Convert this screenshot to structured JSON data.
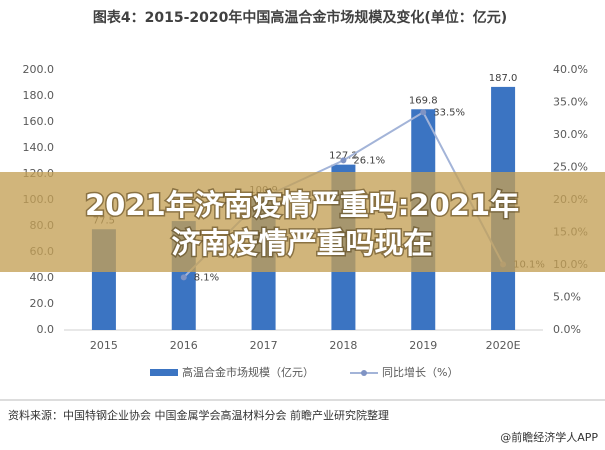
{
  "chart_data": {
    "type": "bar-line",
    "title": "图表4：2015-2020年中国高温合金市场规模及变化(单位：亿元)",
    "categories": [
      "2015",
      "2016",
      "2017",
      "2018",
      "2019",
      "2020E"
    ],
    "series": [
      {
        "name": "高温合金市场规模（亿元）",
        "type": "bar",
        "color": "#3b74c2",
        "values": [
          77.5,
          83.8,
          100.9,
          127.2,
          169.8,
          187.0
        ],
        "value_labels": [
          "77.5",
          null,
          "100.9",
          "127.2",
          "169.8",
          "187.0"
        ]
      },
      {
        "name": "同比增长（%）",
        "type": "line",
        "axis": "y2",
        "color": "#a3b4d8",
        "values": [
          null,
          8.1,
          20.4,
          26.1,
          33.5,
          10.1
        ],
        "value_labels": [
          null,
          "8.1%",
          null,
          "26.1%",
          "33.5%",
          "10.1%"
        ]
      }
    ],
    "ylim": [
      0,
      200
    ],
    "yticks": [
      {
        "value": 0,
        "label": "0.0"
      },
      {
        "value": 20,
        "label": "20.0"
      },
      {
        "value": 40,
        "label": "40.0"
      },
      {
        "value": 60,
        "label": "60.0"
      },
      {
        "value": 80,
        "label": "80.0"
      },
      {
        "value": 100,
        "label": "100.0"
      },
      {
        "value": 120,
        "label": "120.0"
      },
      {
        "value": 140,
        "label": "140.0"
      },
      {
        "value": 160,
        "label": "160.0"
      },
      {
        "value": 180,
        "label": "180.0"
      },
      {
        "value": 200,
        "label": "200.0"
      }
    ],
    "y2lim": [
      0,
      40
    ],
    "y2ticks": [
      {
        "value": 0,
        "label": "0.0%"
      },
      {
        "value": 5,
        "label": "5.0%"
      },
      {
        "value": 10,
        "label": "10.0%"
      },
      {
        "value": 15,
        "label": "15.0%"
      },
      {
        "value": 20,
        "label": "20.0%"
      },
      {
        "value": 25,
        "label": "25.0%"
      },
      {
        "value": 30,
        "label": "30.0%"
      },
      {
        "value": 35,
        "label": "35.0%"
      },
      {
        "value": 40,
        "label": "40.0%"
      }
    ],
    "grid": false,
    "legend": "bottom"
  },
  "overlay": {
    "lines": [
      "2021年济南疫情严重吗:2021年",
      "济南疫情严重吗现在"
    ]
  },
  "source": "资料来源：中国特钢企业协会 中国金属学会高温材料分会 前瞻产业研究院整理",
  "watermark": "@前瞻经济学人APP"
}
